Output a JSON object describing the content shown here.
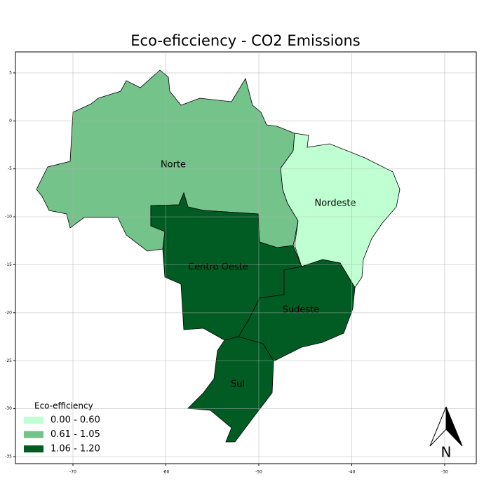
{
  "chart_data": {
    "type": "choropleth",
    "title": "Eco-eficciency - CO2 Emissions",
    "xlim": [
      -76.19,
      -26.6
    ],
    "ylim": [
      -35.73,
      7.19
    ],
    "xticks": [
      -70,
      -60,
      -50,
      -40,
      -30
    ],
    "yticks": [
      5,
      0,
      -5,
      -10,
      -15,
      -20,
      -25,
      -30,
      -35
    ],
    "grid": true,
    "regions": [
      {
        "name": "Norte",
        "color": "#74c38b"
      },
      {
        "name": "Nordeste",
        "color": "#bfffd1"
      },
      {
        "name": "Centro Oeste",
        "color": "#005c22"
      },
      {
        "name": "Sudeste",
        "color": "#005c22"
      },
      {
        "name": "Sul",
        "color": "#005c22"
      }
    ],
    "legend": {
      "title": "Eco-efficiency",
      "position": "lower left",
      "entries": [
        {
          "label": "0.00 - 0.60",
          "color": "#bfffd1"
        },
        {
          "label": "0.61 - 1.05",
          "color": "#74c38b"
        },
        {
          "label": "1.06 - 1.20",
          "color": "#005c22"
        }
      ]
    },
    "north_label": "N"
  }
}
